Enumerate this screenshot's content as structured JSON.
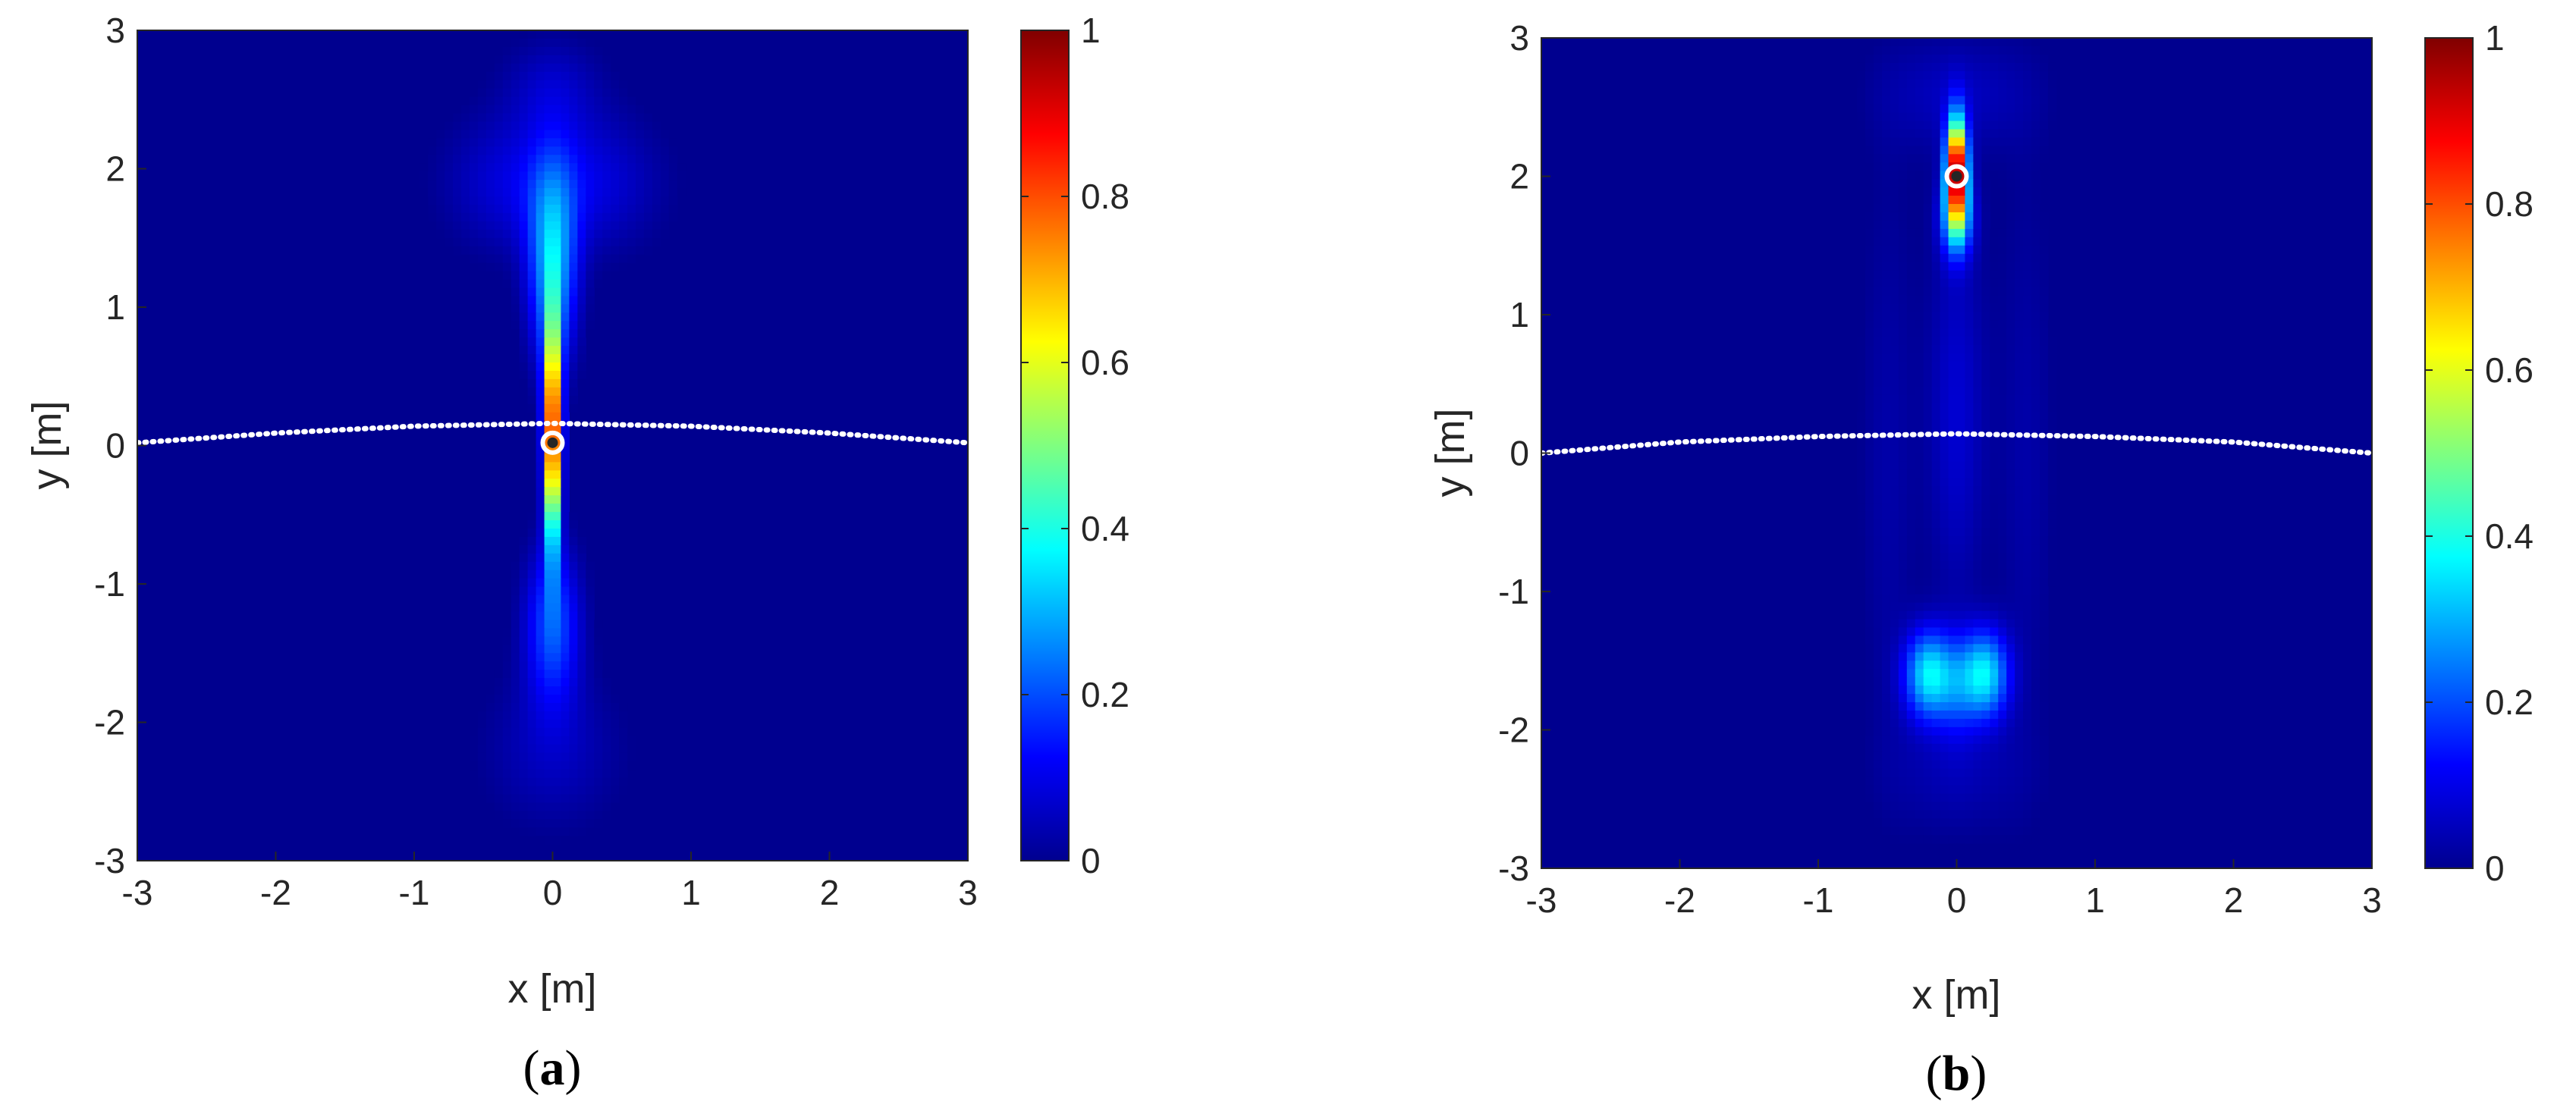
{
  "chart_data": [
    {
      "type": "heatmap",
      "panel_label": "(a)",
      "panel_letter": "a",
      "xlabel": "x [m]",
      "ylabel": "y [m]",
      "xlim": [
        -3,
        3
      ],
      "ylim": [
        -3,
        3
      ],
      "xticks": [
        -3,
        -2,
        -1,
        0,
        1,
        2,
        3
      ],
      "yticks": [
        -3,
        -2,
        -1,
        0,
        1,
        2,
        3
      ],
      "colorbar": {
        "clim": [
          0,
          1
        ],
        "ticks": [
          0,
          0.2,
          0.4,
          0.6,
          0.8,
          1
        ],
        "colormap": "jet"
      },
      "array_curve": {
        "x": [
          -3,
          -2,
          -1,
          0,
          1,
          2,
          3
        ],
        "y": [
          0.02,
          0.09,
          0.14,
          0.16,
          0.14,
          0.09,
          0.02
        ]
      },
      "source_marker": {
        "x": 0,
        "y": 0.02
      },
      "intensity_peaks": [
        {
          "x": 0,
          "y": 0.1,
          "value": 1.0,
          "sx": 0.04,
          "sy": 0.55
        },
        {
          "x": 0,
          "y": 1.3,
          "value": 0.3,
          "sx": 0.12,
          "sy": 0.5
        },
        {
          "x": 0,
          "y": -1.3,
          "value": 0.2,
          "sx": 0.14,
          "sy": 0.4
        },
        {
          "x": -0.3,
          "y": 1.9,
          "value": 0.08,
          "sx": 0.35,
          "sy": 0.35
        },
        {
          "x": 0.3,
          "y": 1.9,
          "value": 0.08,
          "sx": 0.35,
          "sy": 0.35
        },
        {
          "x": 0,
          "y": 2.6,
          "value": 0.06,
          "sx": 0.25,
          "sy": 0.25
        },
        {
          "x": 0,
          "y": -2.2,
          "value": 0.06,
          "sx": 0.35,
          "sy": 0.4
        }
      ]
    },
    {
      "type": "heatmap",
      "panel_label": "(b)",
      "panel_letter": "b",
      "xlabel": "x [m]",
      "ylabel": "y [m]",
      "xlim": [
        -3,
        3
      ],
      "ylim": [
        -3,
        3
      ],
      "xticks": [
        -3,
        -2,
        -1,
        0,
        1,
        2,
        3
      ],
      "yticks": [
        -3,
        -2,
        -1,
        0,
        1,
        2,
        3
      ],
      "colorbar": {
        "clim": [
          0,
          1
        ],
        "ticks": [
          0,
          0.2,
          0.4,
          0.6,
          0.8,
          1
        ],
        "colormap": "jet"
      },
      "array_curve": {
        "x": [
          -3,
          -2,
          -1,
          0,
          1,
          2,
          3
        ],
        "y": [
          0.0,
          0.08,
          0.12,
          0.14,
          0.12,
          0.08,
          0.0
        ]
      },
      "source_marker": {
        "x": 0,
        "y": 2.0
      },
      "intensity_peaks": [
        {
          "x": 0,
          "y": 2.05,
          "value": 1.0,
          "sx": 0.05,
          "sy": 0.25
        },
        {
          "x": 0,
          "y": 1.7,
          "value": 0.3,
          "sx": 0.08,
          "sy": 0.2
        },
        {
          "x": -0.2,
          "y": -1.6,
          "value": 0.35,
          "sx": 0.12,
          "sy": 0.22
        },
        {
          "x": 0.2,
          "y": -1.6,
          "value": 0.35,
          "sx": 0.12,
          "sy": 0.22
        },
        {
          "x": 0,
          "y": -1.7,
          "value": 0.12,
          "sx": 0.1,
          "sy": 0.25
        },
        {
          "x": 0,
          "y": 0.3,
          "value": 0.08,
          "sx": 0.15,
          "sy": 1.0
        },
        {
          "x": -0.5,
          "y": 0.0,
          "value": 0.04,
          "sx": 0.15,
          "sy": 1.6
        },
        {
          "x": 0.5,
          "y": 0.0,
          "value": 0.04,
          "sx": 0.15,
          "sy": 1.6
        },
        {
          "x": 0,
          "y": 2.6,
          "value": 0.06,
          "sx": 0.4,
          "sy": 0.3
        },
        {
          "x": 0,
          "y": -2.3,
          "value": 0.05,
          "sx": 0.35,
          "sy": 0.35
        }
      ]
    }
  ]
}
